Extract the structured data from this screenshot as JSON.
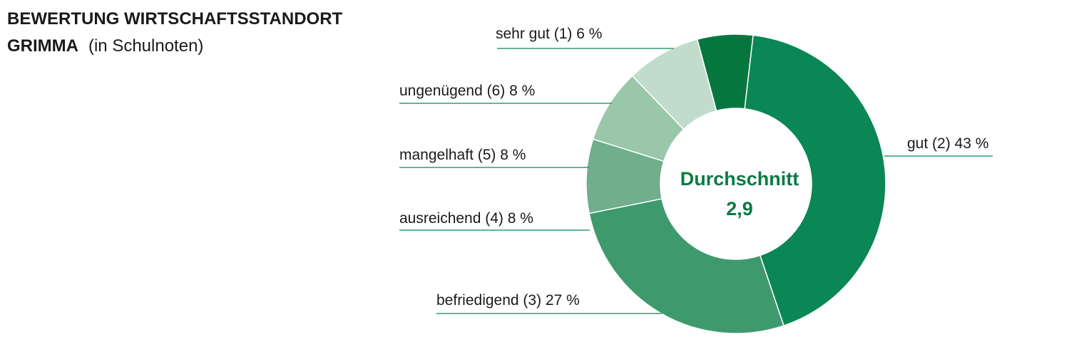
{
  "header": {
    "title_line1": "BEWERTUNG WIRTSCHAFTSSTANDORT",
    "title_line2": "GRIMMA",
    "subtitle": "(in Schulnoten)"
  },
  "chart_data": {
    "type": "pie",
    "donut": true,
    "title": "BEWERTUNG WIRTSCHAFTSSTANDORT GRIMMA",
    "subtitle": "(in Schulnoten)",
    "center_label": "Durchschnitt",
    "center_value": "2,9",
    "unit": "%",
    "slices": [
      {
        "label": "sehr gut (1) 6 %",
        "value": 6,
        "color": "#05773e"
      },
      {
        "label": "gut (2) 43 %",
        "value": 43,
        "color": "#0a8754"
      },
      {
        "label": "befriedigend (3) 27 %",
        "value": 27,
        "color": "#3e9a6d"
      },
      {
        "label": "ausreichend (4) 8 %",
        "value": 8,
        "color": "#70ae8c"
      },
      {
        "label": "mangelhaft (5) 8 %",
        "value": 8,
        "color": "#9ac6aa"
      },
      {
        "label": "ungenügend (6) 8 %",
        "value": 8,
        "color": "#c1dccb"
      }
    ],
    "leader_color": "#0a8754"
  }
}
